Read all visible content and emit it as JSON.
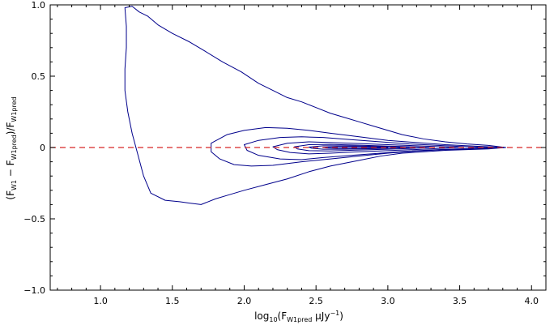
{
  "chart_data": {
    "type": "contour",
    "xlabel": "log10(F_W1pred μJy^-1)",
    "ylabel": "(F_W1 − F_W1pred)/F_W1pred",
    "x_ticks": [
      1.0,
      1.5,
      2.0,
      2.5,
      3.0,
      3.5,
      4.0
    ],
    "x_tick_labels": [
      "1.0",
      "1.5",
      "2.0",
      "2.5",
      "3.0",
      "3.5",
      "4.0"
    ],
    "y_ticks": [
      -1.0,
      -0.5,
      0.0,
      0.5,
      1.0
    ],
    "y_tick_labels": [
      "−1.0",
      "−0.5",
      "0",
      "0.5",
      "1.0"
    ],
    "xlim": [
      0.65,
      4.1
    ],
    "ylim": [
      -1.0,
      1.0
    ],
    "reference_line": {
      "y": 0,
      "style": "dashed",
      "color": "#d62728"
    },
    "contour_color": "#00008b",
    "contours": [
      {
        "level": "outer",
        "points": [
          [
            1.17,
            0.98
          ],
          [
            1.22,
            0.99
          ],
          [
            1.27,
            0.95
          ],
          [
            1.33,
            0.92
          ],
          [
            1.4,
            0.86
          ],
          [
            1.5,
            0.8
          ],
          [
            1.62,
            0.74
          ],
          [
            1.72,
            0.68
          ],
          [
            1.85,
            0.6
          ],
          [
            1.98,
            0.53
          ],
          [
            2.1,
            0.45
          ],
          [
            2.2,
            0.4
          ],
          [
            2.3,
            0.35
          ],
          [
            2.4,
            0.32
          ],
          [
            2.5,
            0.28
          ],
          [
            2.6,
            0.24
          ],
          [
            2.7,
            0.21
          ],
          [
            2.8,
            0.18
          ],
          [
            2.9,
            0.15
          ],
          [
            3.0,
            0.12
          ],
          [
            3.1,
            0.09
          ],
          [
            3.25,
            0.06
          ],
          [
            3.4,
            0.04
          ],
          [
            3.55,
            0.025
          ],
          [
            3.7,
            0.015
          ],
          [
            3.82,
            0.0
          ],
          [
            3.7,
            -0.01
          ],
          [
            3.55,
            -0.015
          ],
          [
            3.4,
            -0.02
          ],
          [
            3.25,
            -0.03
          ],
          [
            3.1,
            -0.04
          ],
          [
            2.95,
            -0.06
          ],
          [
            2.8,
            -0.09
          ],
          [
            2.6,
            -0.13
          ],
          [
            2.45,
            -0.17
          ],
          [
            2.3,
            -0.22
          ],
          [
            2.15,
            -0.26
          ],
          [
            2.0,
            -0.3
          ],
          [
            1.9,
            -0.33
          ],
          [
            1.8,
            -0.36
          ],
          [
            1.7,
            -0.4
          ],
          [
            1.62,
            -0.39
          ],
          [
            1.55,
            -0.38
          ],
          [
            1.45,
            -0.37
          ],
          [
            1.35,
            -0.32
          ],
          [
            1.3,
            -0.2
          ],
          [
            1.26,
            -0.05
          ],
          [
            1.22,
            0.1
          ],
          [
            1.19,
            0.25
          ],
          [
            1.17,
            0.4
          ],
          [
            1.17,
            0.55
          ],
          [
            1.18,
            0.7
          ],
          [
            1.18,
            0.85
          ],
          [
            1.17,
            0.98
          ]
        ]
      },
      {
        "level": "2",
        "points": [
          [
            1.77,
            0.03
          ],
          [
            1.88,
            0.09
          ],
          [
            2.0,
            0.12
          ],
          [
            2.15,
            0.14
          ],
          [
            2.3,
            0.135
          ],
          [
            2.45,
            0.12
          ],
          [
            2.6,
            0.1
          ],
          [
            2.8,
            0.075
          ],
          [
            3.0,
            0.05
          ],
          [
            3.2,
            0.035
          ],
          [
            3.4,
            0.02
          ],
          [
            3.6,
            0.01
          ],
          [
            3.82,
            0.0
          ],
          [
            3.6,
            -0.01
          ],
          [
            3.4,
            -0.015
          ],
          [
            3.2,
            -0.025
          ],
          [
            3.0,
            -0.04
          ],
          [
            2.8,
            -0.06
          ],
          [
            2.6,
            -0.08
          ],
          [
            2.4,
            -0.1
          ],
          [
            2.2,
            -0.125
          ],
          [
            2.05,
            -0.13
          ],
          [
            1.93,
            -0.12
          ],
          [
            1.83,
            -0.08
          ],
          [
            1.77,
            -0.03
          ],
          [
            1.77,
            0.03
          ]
        ]
      },
      {
        "level": "3",
        "points": [
          [
            2.0,
            0.02
          ],
          [
            2.1,
            0.05
          ],
          [
            2.25,
            0.07
          ],
          [
            2.4,
            0.075
          ],
          [
            2.55,
            0.07
          ],
          [
            2.75,
            0.055
          ],
          [
            2.95,
            0.04
          ],
          [
            3.15,
            0.025
          ],
          [
            3.35,
            0.015
          ],
          [
            3.55,
            0.005
          ],
          [
            3.7,
            0.0
          ],
          [
            3.55,
            -0.008
          ],
          [
            3.35,
            -0.015
          ],
          [
            3.15,
            -0.025
          ],
          [
            2.95,
            -0.04
          ],
          [
            2.75,
            -0.055
          ],
          [
            2.55,
            -0.07
          ],
          [
            2.4,
            -0.085
          ],
          [
            2.25,
            -0.08
          ],
          [
            2.1,
            -0.055
          ],
          [
            2.02,
            -0.02
          ],
          [
            2.0,
            0.02
          ]
        ]
      },
      {
        "level": "4",
        "points": [
          [
            2.2,
            0.005
          ],
          [
            2.3,
            0.03
          ],
          [
            2.45,
            0.04
          ],
          [
            2.6,
            0.035
          ],
          [
            2.8,
            0.028
          ],
          [
            3.0,
            0.02
          ],
          [
            3.2,
            0.012
          ],
          [
            3.38,
            0.005
          ],
          [
            3.5,
            0.0
          ],
          [
            3.38,
            -0.006
          ],
          [
            3.2,
            -0.014
          ],
          [
            3.0,
            -0.022
          ],
          [
            2.8,
            -0.03
          ],
          [
            2.6,
            -0.04
          ],
          [
            2.45,
            -0.045
          ],
          [
            2.32,
            -0.035
          ],
          [
            2.23,
            -0.015
          ],
          [
            2.2,
            0.005
          ]
        ]
      },
      {
        "level": "5",
        "points": [
          [
            2.35,
            0.005
          ],
          [
            2.45,
            0.02
          ],
          [
            2.6,
            0.022
          ],
          [
            2.8,
            0.016
          ],
          [
            3.0,
            0.01
          ],
          [
            3.2,
            0.004
          ],
          [
            3.3,
            0.0
          ],
          [
            3.2,
            -0.005
          ],
          [
            3.0,
            -0.012
          ],
          [
            2.8,
            -0.018
          ],
          [
            2.6,
            -0.024
          ],
          [
            2.45,
            -0.022
          ],
          [
            2.37,
            -0.01
          ],
          [
            2.35,
            0.005
          ]
        ]
      },
      {
        "level": "6",
        "points": [
          [
            2.45,
            0.003
          ],
          [
            2.55,
            0.012
          ],
          [
            2.7,
            0.012
          ],
          [
            2.9,
            0.008
          ],
          [
            3.05,
            0.004
          ],
          [
            3.15,
            0.0
          ],
          [
            3.05,
            -0.004
          ],
          [
            2.9,
            -0.008
          ],
          [
            2.7,
            -0.012
          ],
          [
            2.55,
            -0.012
          ],
          [
            2.47,
            -0.005
          ],
          [
            2.45,
            0.003
          ]
        ]
      },
      {
        "level": "7",
        "points": [
          [
            2.55,
            0.002
          ],
          [
            2.65,
            0.006
          ],
          [
            2.8,
            0.005
          ],
          [
            2.95,
            0.002
          ],
          [
            3.0,
            0.0
          ],
          [
            2.95,
            -0.003
          ],
          [
            2.8,
            -0.005
          ],
          [
            2.65,
            -0.006
          ],
          [
            2.57,
            -0.003
          ],
          [
            2.55,
            0.002
          ]
        ]
      }
    ]
  }
}
